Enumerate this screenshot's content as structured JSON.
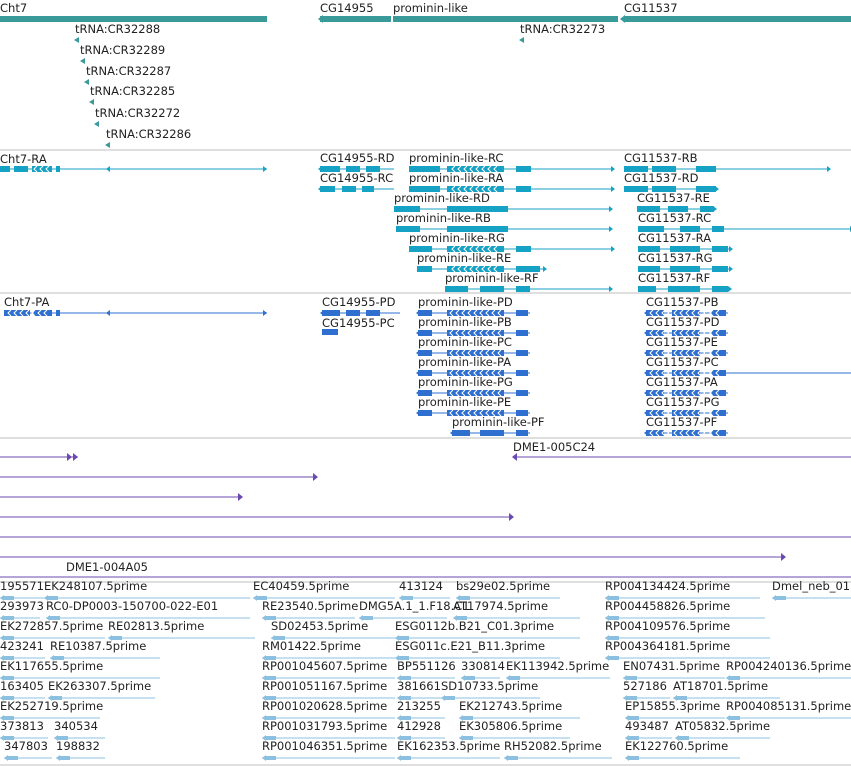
{
  "colors": {
    "gene": "#3a9a9a",
    "transcript": "#16a2c4",
    "protein": "#2e6fd0",
    "clone": "#6a4ab0",
    "est": "#8cc0e0",
    "divider": "#bfbfbf"
  },
  "genes": [
    {
      "label": "Cht7"
    },
    {
      "label": "CG14955"
    },
    {
      "label": "prominin-like"
    },
    {
      "label": "CG11537"
    }
  ],
  "trnas": [
    {
      "label": "tRNA:CR32288"
    },
    {
      "label": "tRNA:CR32289"
    },
    {
      "label": "tRNA:CR32287"
    },
    {
      "label": "tRNA:CR32285"
    },
    {
      "label": "tRNA:CR32272"
    },
    {
      "label": "tRNA:CR32286"
    },
    {
      "label": "tRNA:CR32273"
    }
  ],
  "transcripts": [
    {
      "label": "Cht7-RA"
    },
    {
      "label": "CG14955-RD"
    },
    {
      "label": "CG14955-RC"
    },
    {
      "label": "prominin-like-RC"
    },
    {
      "label": "prominin-like-RA"
    },
    {
      "label": "prominin-like-RD"
    },
    {
      "label": "prominin-like-RB"
    },
    {
      "label": "prominin-like-RG"
    },
    {
      "label": "prominin-like-RE"
    },
    {
      "label": "prominin-like-RF"
    },
    {
      "label": "CG11537-RB"
    },
    {
      "label": "CG11537-RD"
    },
    {
      "label": "CG11537-RE"
    },
    {
      "label": "CG11537-RC"
    },
    {
      "label": "CG11537-RA"
    },
    {
      "label": "CG11537-RG"
    },
    {
      "label": "CG11537-RF"
    }
  ],
  "proteins": [
    {
      "label": "Cht7-PA"
    },
    {
      "label": "CG14955-PD"
    },
    {
      "label": "CG14955-PC"
    },
    {
      "label": "prominin-like-PD"
    },
    {
      "label": "prominin-like-PB"
    },
    {
      "label": "prominin-like-PC"
    },
    {
      "label": "prominin-like-PA"
    },
    {
      "label": "prominin-like-PG"
    },
    {
      "label": "prominin-like-PE"
    },
    {
      "label": "prominin-like-PF"
    },
    {
      "label": "CG11537-PB"
    },
    {
      "label": "CG11537-PD"
    },
    {
      "label": "CG11537-PE"
    },
    {
      "label": "CG11537-PC"
    },
    {
      "label": "CG11537-PA"
    },
    {
      "label": "CG11537-PG"
    },
    {
      "label": "CG11537-PF"
    }
  ],
  "clones": [
    {
      "label": "DME1-005C24"
    },
    {
      "label": "DME1-004A05"
    }
  ],
  "ests": [
    {
      "label": "195571"
    },
    {
      "label": "EK248107.5prime"
    },
    {
      "label": "EC40459.5prime"
    },
    {
      "label": "413124"
    },
    {
      "label": "bs29e02.5prime"
    },
    {
      "label": "RP004134424.5prime"
    },
    {
      "label": "Dmel_neb_01"
    },
    {
      "label": "293973"
    },
    {
      "label": "RC0-DP0003-150700-022-E01"
    },
    {
      "label": "RE23540.5prime"
    },
    {
      "label": "DMG5A.1_1.F18.C1"
    },
    {
      "label": "AT17974.5prime"
    },
    {
      "label": "RP004458826.5prime"
    },
    {
      "label": "EK272857.5prime"
    },
    {
      "label": "RE02813.5prime"
    },
    {
      "label": "SD02453.5prime"
    },
    {
      "label": "ESG0112b.B21_C01.3prime"
    },
    {
      "label": "RP004109576.5prime"
    },
    {
      "label": "423241"
    },
    {
      "label": "RE10387.5prime"
    },
    {
      "label": "RM01422.5prime"
    },
    {
      "label": "ESG011c.E21_B11.3prime"
    },
    {
      "label": "RP004364181.5prime"
    },
    {
      "label": "EK117655.5prime"
    },
    {
      "label": "RP001045607.5prime"
    },
    {
      "label": "BP551126"
    },
    {
      "label": "330814"
    },
    {
      "label": "EK113942.5prime"
    },
    {
      "label": "EN07431.5prime"
    },
    {
      "label": "RP004240136.5prime"
    },
    {
      "label": "163405"
    },
    {
      "label": "EK263307.5prime"
    },
    {
      "label": "RP001051167.5prime"
    },
    {
      "label": "381661"
    },
    {
      "label": "SD10733.5prime"
    },
    {
      "label": "527186"
    },
    {
      "label": "AT18701.5prime"
    },
    {
      "label": "EK252719.5prime"
    },
    {
      "label": "RP001020628.5prime"
    },
    {
      "label": "213255"
    },
    {
      "label": "EK212743.5prime"
    },
    {
      "label": "EP15855.3prime"
    },
    {
      "label": "RP004085131.5prime"
    },
    {
      "label": "373813"
    },
    {
      "label": "340534"
    },
    {
      "label": "RP001031793.5prime"
    },
    {
      "label": "412928"
    },
    {
      "label": "EK305806.5prime"
    },
    {
      "label": "493487"
    },
    {
      "label": "AT05832.5prime"
    },
    {
      "label": "347803"
    },
    {
      "label": "198832"
    },
    {
      "label": "RP001046351.5prime"
    },
    {
      "label": "EK162353.5prime"
    },
    {
      "label": "RH52082.5prime"
    },
    {
      "label": "EK122760.5prime"
    }
  ]
}
